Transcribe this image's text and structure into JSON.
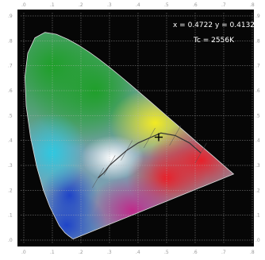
{
  "chart_data": {
    "type": "scatter",
    "title": "",
    "xlabel": "",
    "ylabel": "",
    "xlim": [
      0,
      0.8
    ],
    "ylim": [
      0,
      0.9
    ],
    "x_ticks": [
      ".0",
      ".1",
      ".2",
      ".3",
      ".4",
      ".5",
      ".6",
      ".7",
      ".8"
    ],
    "y_ticks": [
      ".0",
      ".1",
      ".2",
      ".3",
      ".4",
      ".5",
      ".6",
      ".7",
      ".8",
      ".9"
    ],
    "grid": true,
    "annotations": {
      "coordinate_readout": "x = 0.4722 y = 0.4132",
      "tc_readout": "Tc = 2556K"
    },
    "marked_point": {
      "x": 0.4722,
      "y": 0.4132
    },
    "colors": {
      "frame": "#060606",
      "grid": "#b8b8b8",
      "green": "#1f9f2a",
      "yellow": "#f2ea22",
      "red": "#e8202a",
      "magenta": "#c02a8a",
      "blue": "#1f44c8",
      "cyan": "#2ec8e0"
    }
  }
}
